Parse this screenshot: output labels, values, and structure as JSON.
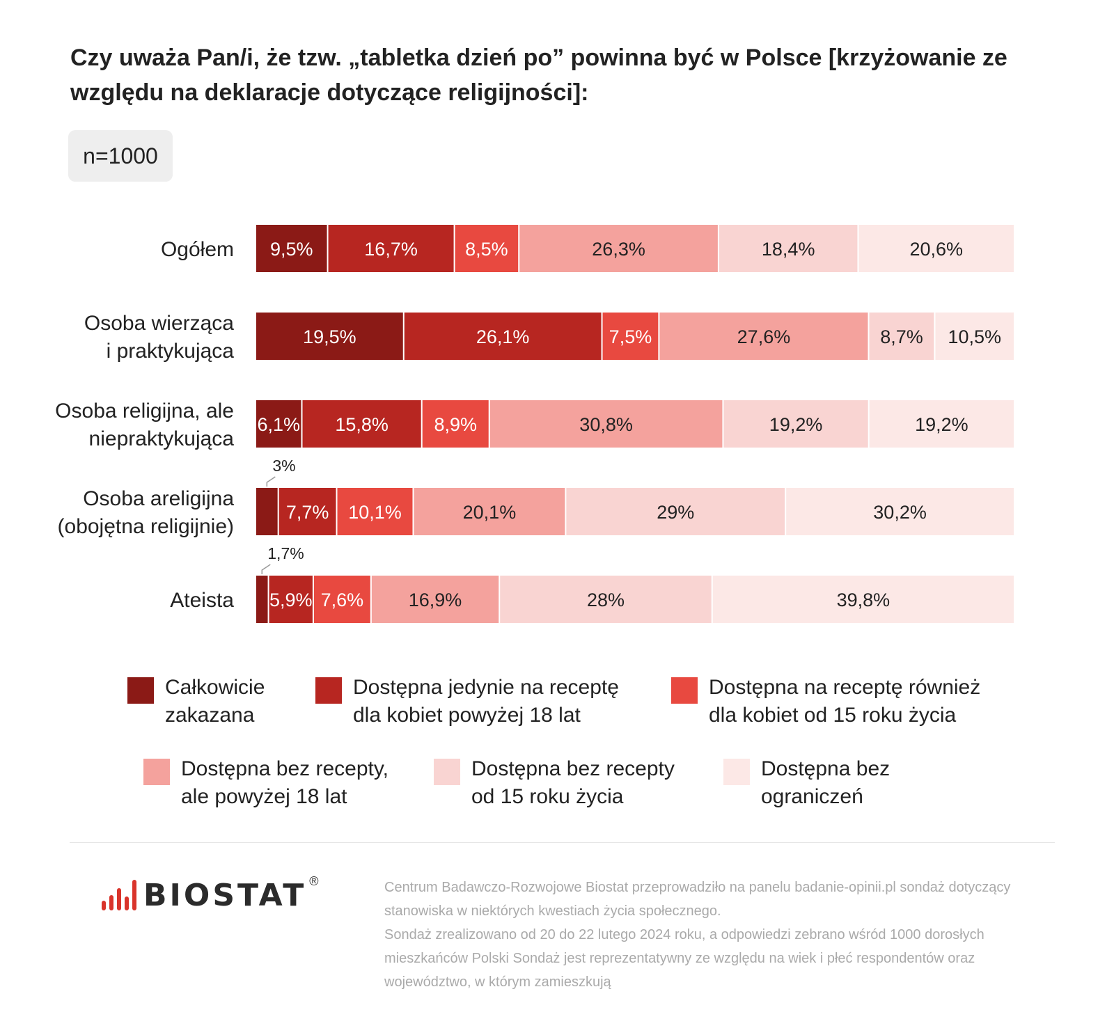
{
  "title": "Czy uważa Pan/i, że tzw. „tabletka dzień po” powinna być w Polsce [krzyżowanie ze względu na deklaracje dotyczące religijności]:",
  "sample": "n=1000",
  "colors": [
    "#8b1a16",
    "#b72621",
    "#e84940",
    "#f4a29d",
    "#f9d4d2",
    "#fce8e6"
  ],
  "chart_data": {
    "type": "bar",
    "orientation": "horizontal",
    "stacked": true,
    "categories": [
      "Ogółem",
      "Osoba wierząca\ni praktykująca",
      "Osoba religijna, ale\nniepraktykująca",
      "Osoba areligijna\n(obojętna religijnie)",
      "Ateista"
    ],
    "series": [
      {
        "name": "Całkowicie\nzakazana",
        "values": [
          9.5,
          19.5,
          6.1,
          3,
          1.7
        ],
        "labels": [
          "9,5%",
          "19,5%",
          "6,1%",
          "3%",
          "1,7%"
        ]
      },
      {
        "name": "Dostępna jedynie na receptę\ndla kobiet powyżej 18 lat",
        "values": [
          16.7,
          26.1,
          15.8,
          7.7,
          5.9
        ],
        "labels": [
          "16,7%",
          "26,1%",
          "15,8%",
          "7,7%",
          "5,9%"
        ]
      },
      {
        "name": "Dostępna na receptę również\ndla kobiet od 15 roku życia",
        "values": [
          8.5,
          7.5,
          8.9,
          10.1,
          7.6
        ],
        "labels": [
          "8,5%",
          "7,5%",
          "8,9%",
          "10,1%",
          "7,6%"
        ]
      },
      {
        "name": "Dostępna bez recepty,\nale powyżej 18 lat",
        "values": [
          26.3,
          27.6,
          30.8,
          20.1,
          16.9
        ],
        "labels": [
          "26,3%",
          "27,6%",
          "30,8%",
          "20,1%",
          "16,9%"
        ]
      },
      {
        "name": "Dostępna bez recepty\nod 15 roku życia",
        "values": [
          18.4,
          8.7,
          19.2,
          29,
          28
        ],
        "labels": [
          "18,4%",
          "8,7%",
          "19,2%",
          "29%",
          "28%"
        ]
      },
      {
        "name": "Dostępna bez\nograniczeń",
        "values": [
          20.6,
          10.5,
          19.2,
          30.2,
          39.8
        ],
        "labels": [
          "20,6%",
          "10,5%",
          "19,2%",
          "30,2%",
          "39,8%"
        ]
      }
    ],
    "legend_position": "bottom",
    "grid": false
  },
  "footer": {
    "logo_text": "BIOSTAT",
    "logo_mark": "®",
    "note_1": "Centrum Badawczo-Rozwojowe Biostat przeprowadziło na panelu badanie-opinii.pl sondaż dotyczący stanowiska w niektórych kwestiach życia społecznego.",
    "note_2": "Sondaż zrealizowano od 20 do 22 lutego 2024 roku, a odpowiedzi zebrano wśród 1000 dorosłych mieszkańców Polski Sondaż jest reprezentatywny ze względu na wiek i płeć respondentów oraz województwo, w którym zamieszkują"
  }
}
